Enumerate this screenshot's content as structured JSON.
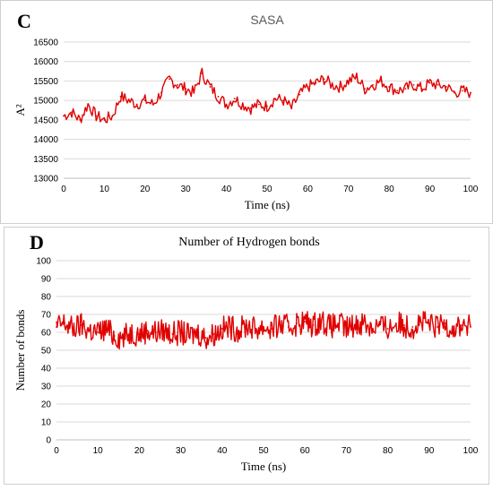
{
  "chart_data": [
    {
      "type": "line",
      "panel_label": "C",
      "title": "SASA",
      "xlabel": "Time (ns)",
      "ylabel": "A²",
      "xlim": [
        0,
        100
      ],
      "ylim": [
        13000,
        16500
      ],
      "xticks": [
        0,
        10,
        20,
        30,
        40,
        50,
        60,
        70,
        80,
        90,
        100
      ],
      "yticks": [
        13000,
        13500,
        14000,
        14500,
        15000,
        15500,
        16000,
        16500
      ],
      "grid": true,
      "legend": "none",
      "series": [
        {
          "color": "#e00000",
          "x": [
            0,
            2,
            4,
            6,
            8,
            10,
            12,
            14,
            16,
            18,
            20,
            22,
            24,
            26,
            28,
            30,
            32,
            34,
            36,
            38,
            40,
            42,
            44,
            46,
            48,
            50,
            52,
            54,
            56,
            58,
            60,
            62,
            64,
            66,
            68,
            70,
            72,
            74,
            76,
            78,
            80,
            82,
            84,
            86,
            88,
            90,
            92,
            94,
            96,
            98,
            100
          ],
          "values": [
            14600,
            14700,
            14500,
            14900,
            14600,
            14500,
            14600,
            15100,
            15000,
            14900,
            15000,
            14900,
            15200,
            15550,
            15400,
            15300,
            15200,
            15700,
            15350,
            15100,
            14900,
            15050,
            14900,
            14800,
            14900,
            14850,
            15050,
            15000,
            14800,
            15150,
            15350,
            15450,
            15550,
            15400,
            15350,
            15500,
            15600,
            15300,
            15400,
            15500,
            15350,
            15250,
            15300,
            15400,
            15300,
            15450,
            15400,
            15350,
            15200,
            15250,
            15200
          ]
        }
      ]
    },
    {
      "type": "line",
      "panel_label": "D",
      "title": "Number of Hydrogen  bonds",
      "xlabel": "Time (ns)",
      "ylabel": "Number of bonds",
      "xlim": [
        0,
        100
      ],
      "ylim": [
        0,
        100
      ],
      "xticks": [
        0,
        10,
        20,
        30,
        40,
        50,
        60,
        70,
        80,
        90,
        100
      ],
      "yticks": [
        0,
        10,
        20,
        30,
        40,
        50,
        60,
        70,
        80,
        90,
        100
      ],
      "grid": true,
      "legend": "none",
      "series": [
        {
          "color": "#e00000",
          "x": [
            0,
            2,
            4,
            6,
            8,
            10,
            12,
            14,
            16,
            18,
            20,
            22,
            24,
            26,
            28,
            30,
            32,
            34,
            36,
            38,
            40,
            42,
            44,
            46,
            48,
            50,
            52,
            54,
            56,
            58,
            60,
            62,
            64,
            66,
            68,
            70,
            72,
            74,
            76,
            78,
            80,
            82,
            84,
            86,
            88,
            90,
            92,
            94,
            96,
            98,
            100
          ],
          "values": [
            63,
            65,
            62,
            64,
            61,
            60,
            62,
            58,
            57,
            60,
            59,
            61,
            60,
            61,
            59,
            60,
            58,
            60,
            57,
            59,
            62,
            63,
            61,
            64,
            62,
            63,
            62,
            64,
            63,
            65,
            66,
            64,
            67,
            63,
            65,
            62,
            64,
            66,
            63,
            64,
            62,
            65,
            64,
            63,
            66,
            64,
            63,
            65,
            62,
            64,
            63
          ]
        }
      ]
    }
  ]
}
